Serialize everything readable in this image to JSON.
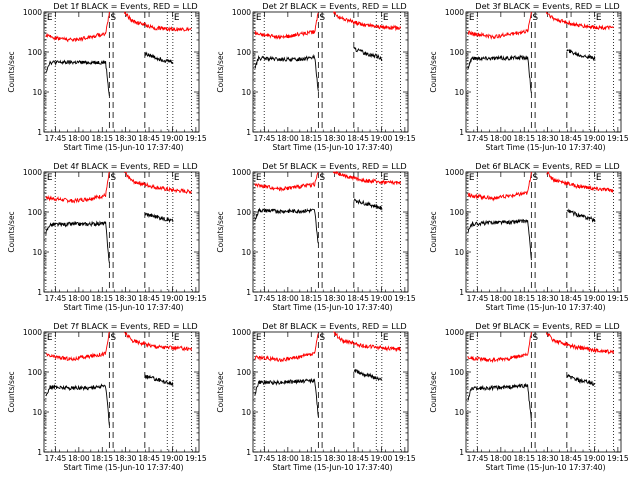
{
  "chart_data": {
    "type": "line",
    "layout": {
      "rows": 3,
      "cols": 3
    },
    "yscale": "log",
    "ylim": [
      1,
      1000
    ],
    "xlabel": "Start Time (15-Jun-10 17:37:40)",
    "ylabel": "Counts/sec",
    "x_ticks": [
      "17:45",
      "18:00",
      "18:15",
      "18:30",
      "18:45",
      "19:00",
      "19:15"
    ],
    "y_ticks": [
      "1",
      "10",
      "100",
      "1000"
    ],
    "x_range_minutes": [
      -3.5,
      38.0
    ],
    "series_colors": {
      "events": "#000000",
      "lld": "#ff0000"
    },
    "markers": [
      {
        "label": "E",
        "x": -3.0,
        "style": "dotted"
      },
      {
        "label": "",
        "x": -0.5,
        "style": "dotted"
      },
      {
        "label": "S",
        "x": 14.0,
        "style": "dashed"
      },
      {
        "label": "",
        "x": 15.0,
        "style": "dashed"
      },
      {
        "label": "",
        "x": 23.5,
        "style": "dashed"
      },
      {
        "label": "",
        "x": 29.5,
        "style": "dotted"
      },
      {
        "label": "E",
        "x": 31.0,
        "style": "dotted"
      },
      {
        "label": "",
        "x": 36.0,
        "style": "dotted"
      }
    ],
    "panels": [
      {
        "title": "Det 1f BLACK = Events, RED = LLD",
        "events": [
          [
            -3,
            32
          ],
          [
            -2,
            55
          ],
          [
            4,
            55
          ],
          [
            8,
            55
          ],
          [
            13,
            55
          ],
          [
            14,
            8
          ],
          [
            23.5,
            90
          ],
          [
            27,
            70
          ],
          [
            29.5,
            60
          ],
          [
            31,
            58
          ]
        ],
        "lld": [
          [
            -3,
            260
          ],
          [
            -2,
            240
          ],
          [
            4,
            200
          ],
          [
            8,
            230
          ],
          [
            13,
            290
          ],
          [
            14,
            1000
          ],
          [
            18,
            1000
          ],
          [
            20,
            600
          ],
          [
            26,
            400
          ],
          [
            31,
            380
          ],
          [
            36,
            360
          ]
        ]
      },
      {
        "title": "Det 2f BLACK = Events, RED = LLD",
        "events": [
          [
            -3,
            40
          ],
          [
            -2,
            70
          ],
          [
            4,
            65
          ],
          [
            8,
            65
          ],
          [
            13,
            75
          ],
          [
            14,
            10
          ],
          [
            23.5,
            120
          ],
          [
            27,
            90
          ],
          [
            29.5,
            80
          ],
          [
            31,
            70
          ]
        ],
        "lld": [
          [
            -3,
            300
          ],
          [
            -2,
            280
          ],
          [
            4,
            230
          ],
          [
            8,
            270
          ],
          [
            13,
            320
          ],
          [
            14,
            1000
          ],
          [
            18,
            1000
          ],
          [
            20,
            700
          ],
          [
            26,
            480
          ],
          [
            31,
            420
          ],
          [
            36,
            400
          ]
        ]
      },
      {
        "title": "Det 3f BLACK = Events, RED = LLD",
        "events": [
          [
            -3,
            40
          ],
          [
            -2,
            70
          ],
          [
            4,
            70
          ],
          [
            8,
            70
          ],
          [
            13,
            75
          ],
          [
            14,
            9
          ],
          [
            23.5,
            110
          ],
          [
            27,
            85
          ],
          [
            29.5,
            75
          ],
          [
            31,
            68
          ]
        ],
        "lld": [
          [
            -3,
            310
          ],
          [
            -2,
            290
          ],
          [
            4,
            240
          ],
          [
            8,
            280
          ],
          [
            13,
            330
          ],
          [
            14,
            1000
          ],
          [
            18,
            1000
          ],
          [
            20,
            680
          ],
          [
            26,
            470
          ],
          [
            31,
            420
          ],
          [
            36,
            400
          ]
        ]
      },
      {
        "title": "Det 4f BLACK = Events, RED = LLD",
        "events": [
          [
            -3,
            30
          ],
          [
            -2,
            48
          ],
          [
            4,
            50
          ],
          [
            8,
            50
          ],
          [
            13,
            52
          ],
          [
            14,
            5
          ],
          [
            23.5,
            90
          ],
          [
            27,
            75
          ],
          [
            29.5,
            65
          ],
          [
            31,
            60
          ]
        ],
        "lld": [
          [
            -3,
            240
          ],
          [
            -2,
            220
          ],
          [
            4,
            190
          ],
          [
            8,
            210
          ],
          [
            13,
            260
          ],
          [
            14,
            1000
          ],
          [
            18,
            1000
          ],
          [
            20,
            600
          ],
          [
            26,
            420
          ],
          [
            31,
            350
          ],
          [
            36,
            320
          ]
        ]
      },
      {
        "title": "Det 5f BLACK = Events, RED = LLD",
        "events": [
          [
            -3,
            60
          ],
          [
            -2,
            110
          ],
          [
            4,
            105
          ],
          [
            8,
            105
          ],
          [
            13,
            110
          ],
          [
            14,
            15
          ],
          [
            23.5,
            200
          ],
          [
            27,
            160
          ],
          [
            29.5,
            140
          ],
          [
            31,
            120
          ]
        ],
        "lld": [
          [
            -3,
            480
          ],
          [
            -2,
            460
          ],
          [
            4,
            380
          ],
          [
            8,
            420
          ],
          [
            13,
            500
          ],
          [
            14,
            1000
          ],
          [
            18,
            1000
          ],
          [
            20,
            850
          ],
          [
            26,
            620
          ],
          [
            31,
            560
          ],
          [
            36,
            540
          ]
        ]
      },
      {
        "title": "Det 6f BLACK = Events, RED = LLD",
        "events": [
          [
            -3,
            30
          ],
          [
            -2,
            50
          ],
          [
            4,
            55
          ],
          [
            8,
            55
          ],
          [
            13,
            60
          ],
          [
            14,
            7
          ],
          [
            23.5,
            110
          ],
          [
            27,
            80
          ],
          [
            29.5,
            70
          ],
          [
            31,
            62
          ]
        ],
        "lld": [
          [
            -3,
            280
          ],
          [
            -2,
            260
          ],
          [
            4,
            220
          ],
          [
            8,
            250
          ],
          [
            13,
            300
          ],
          [
            14,
            1000
          ],
          [
            18,
            1000
          ],
          [
            20,
            650
          ],
          [
            26,
            450
          ],
          [
            31,
            380
          ],
          [
            36,
            350
          ]
        ]
      },
      {
        "title": "Det 7f BLACK = Events, RED = LLD",
        "events": [
          [
            -3,
            25
          ],
          [
            -2,
            42
          ],
          [
            4,
            40
          ],
          [
            8,
            40
          ],
          [
            13,
            45
          ],
          [
            14,
            5
          ],
          [
            23.5,
            80
          ],
          [
            27,
            65
          ],
          [
            29.5,
            55
          ],
          [
            31,
            50
          ]
        ],
        "lld": [
          [
            -3,
            270
          ],
          [
            -2,
            250
          ],
          [
            4,
            210
          ],
          [
            8,
            240
          ],
          [
            13,
            290
          ],
          [
            14,
            1000
          ],
          [
            18,
            1000
          ],
          [
            20,
            620
          ],
          [
            26,
            440
          ],
          [
            31,
            400
          ],
          [
            36,
            380
          ]
        ]
      },
      {
        "title": "Det 8f BLACK = Events, RED = LLD",
        "events": [
          [
            -3,
            28
          ],
          [
            -2,
            55
          ],
          [
            4,
            55
          ],
          [
            8,
            58
          ],
          [
            13,
            62
          ],
          [
            14,
            8
          ],
          [
            23.5,
            110
          ],
          [
            27,
            85
          ],
          [
            29.5,
            72
          ],
          [
            31,
            62
          ]
        ],
        "lld": [
          [
            -3,
            240
          ],
          [
            -2,
            230
          ],
          [
            4,
            200
          ],
          [
            8,
            230
          ],
          [
            13,
            290
          ],
          [
            14,
            1000
          ],
          [
            18,
            1000
          ],
          [
            20,
            640
          ],
          [
            26,
            450
          ],
          [
            31,
            400
          ],
          [
            36,
            380
          ]
        ]
      },
      {
        "title": "Det 9f BLACK = Events, RED = LLD",
        "events": [
          [
            -3,
            20
          ],
          [
            -2,
            40
          ],
          [
            4,
            40
          ],
          [
            8,
            42
          ],
          [
            13,
            46
          ],
          [
            14,
            6
          ],
          [
            23.5,
            80
          ],
          [
            27,
            60
          ],
          [
            29.5,
            55
          ],
          [
            31,
            48
          ]
        ],
        "lld": [
          [
            -3,
            240
          ],
          [
            -2,
            220
          ],
          [
            4,
            200
          ],
          [
            8,
            220
          ],
          [
            13,
            270
          ],
          [
            14,
            1000
          ],
          [
            18,
            1000
          ],
          [
            20,
            600
          ],
          [
            26,
            420
          ],
          [
            31,
            350
          ],
          [
            36,
            320
          ]
        ]
      }
    ]
  }
}
